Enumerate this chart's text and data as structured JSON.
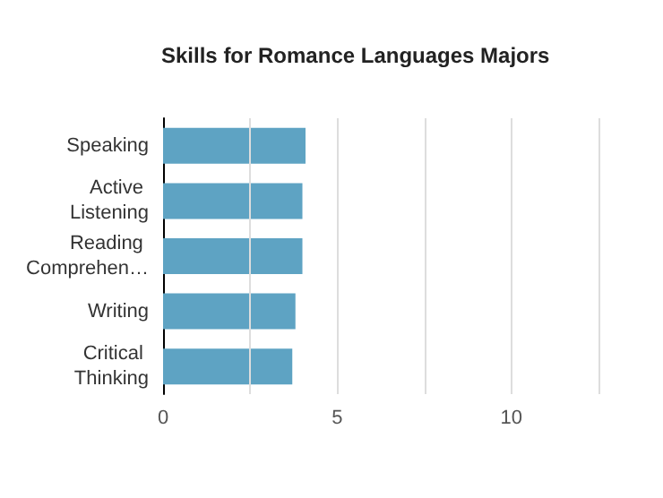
{
  "chart_data": {
    "type": "bar",
    "orientation": "horizontal",
    "title": "Skills for Romance Languages Majors",
    "categories": [
      "Speaking",
      "Active Listening",
      "Reading Comprehen…",
      "Writing",
      "Critical Thinking"
    ],
    "values": [
      4.09,
      4.0,
      4.0,
      3.8,
      3.71
    ],
    "color": "#5ea3c3",
    "xlim": [
      0,
      12.5
    ],
    "xticks": [
      0,
      {
        "value": 2.5,
        "label": null
      },
      5,
      {
        "value": 7.5,
        "label": null
      },
      10,
      {
        "value": 12.5,
        "label": null
      }
    ],
    "grid": "x"
  }
}
